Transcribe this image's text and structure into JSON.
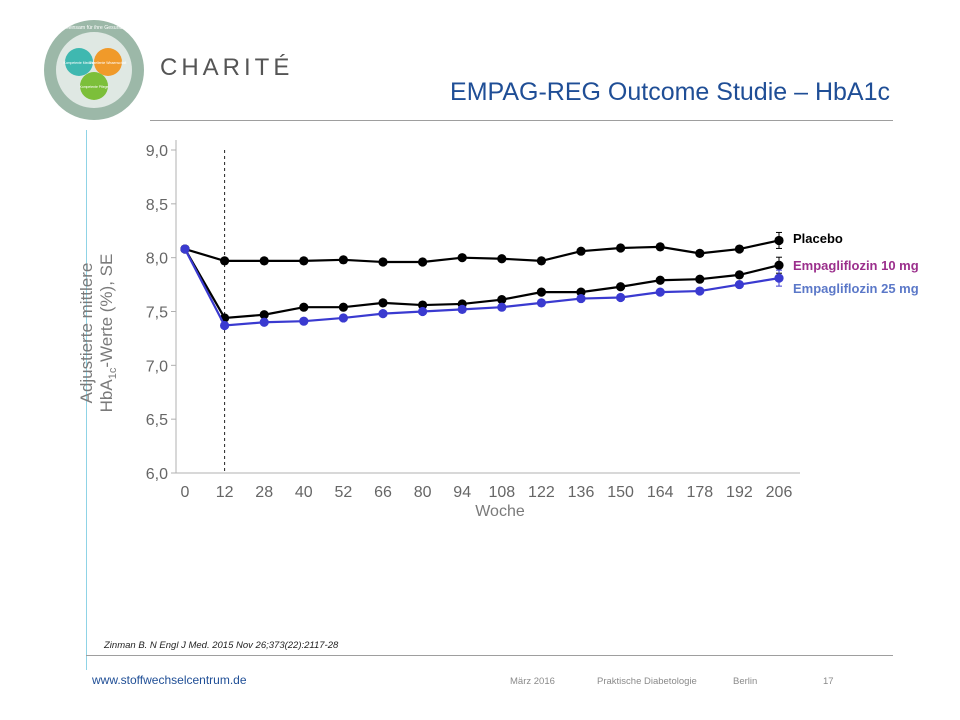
{
  "header": {
    "title": "EMPAG-REG Outcome Studie – HbA1c",
    "brand": "CHARITÉ",
    "logo_segments": [
      "Gemeinsam für ihre Gesundheit",
      "Kompetente Medizin",
      "Exzellente Wissenschaft",
      "Kompetente Pflege"
    ]
  },
  "citation": "Zinman B. N Engl J Med. 2015 Nov 26;373(22):2117-28",
  "footer": {
    "url": "www.stoffwechselcentrum.de",
    "date": "März 2016",
    "event": "Praktische Diabetologie",
    "city": "Berlin",
    "page": "17"
  },
  "chart_data": {
    "type": "line",
    "xlabel": "Woche",
    "ylabel_line1": "Adjustierte mittlere",
    "ylabel_line2_prefix": "HbA",
    "ylabel_line2_sub": "1c",
    "ylabel_line2_suffix": "-Werte (%), SE",
    "x_ticks": [
      0,
      12,
      28,
      40,
      52,
      66,
      80,
      94,
      108,
      122,
      136,
      150,
      164,
      178,
      192,
      206
    ],
    "y_ticks": [
      "6,0",
      "6,5",
      "7,0",
      "7,5",
      "8,0",
      "8,5",
      "9,0"
    ],
    "y_tick_values": [
      6.0,
      6.5,
      7.0,
      7.5,
      8.0,
      8.5,
      9.0
    ],
    "ylim": [
      6.0,
      9.0
    ],
    "reference_line_x": 12,
    "series": [
      {
        "name": "Placebo",
        "color": "#000000",
        "label_color": "#000000",
        "values": [
          8.08,
          7.97,
          7.97,
          7.97,
          7.98,
          7.96,
          7.96,
          8.0,
          7.99,
          7.97,
          8.06,
          8.09,
          8.1,
          8.04,
          8.08,
          8.16
        ]
      },
      {
        "name": "Empagliflozin 10 mg",
        "color": "#000000",
        "label_color": "#9b2f8c",
        "values": [
          8.08,
          7.44,
          7.47,
          7.54,
          7.54,
          7.58,
          7.56,
          7.57,
          7.61,
          7.68,
          7.68,
          7.73,
          7.79,
          7.8,
          7.84,
          7.93
        ]
      },
      {
        "name": "Empagliflozin 25 mg",
        "color": "#3a3ad0",
        "label_color": "#5b78c8",
        "values": [
          8.08,
          7.37,
          7.4,
          7.41,
          7.44,
          7.48,
          7.5,
          7.52,
          7.54,
          7.58,
          7.62,
          7.63,
          7.68,
          7.69,
          7.75,
          7.81
        ]
      }
    ]
  }
}
